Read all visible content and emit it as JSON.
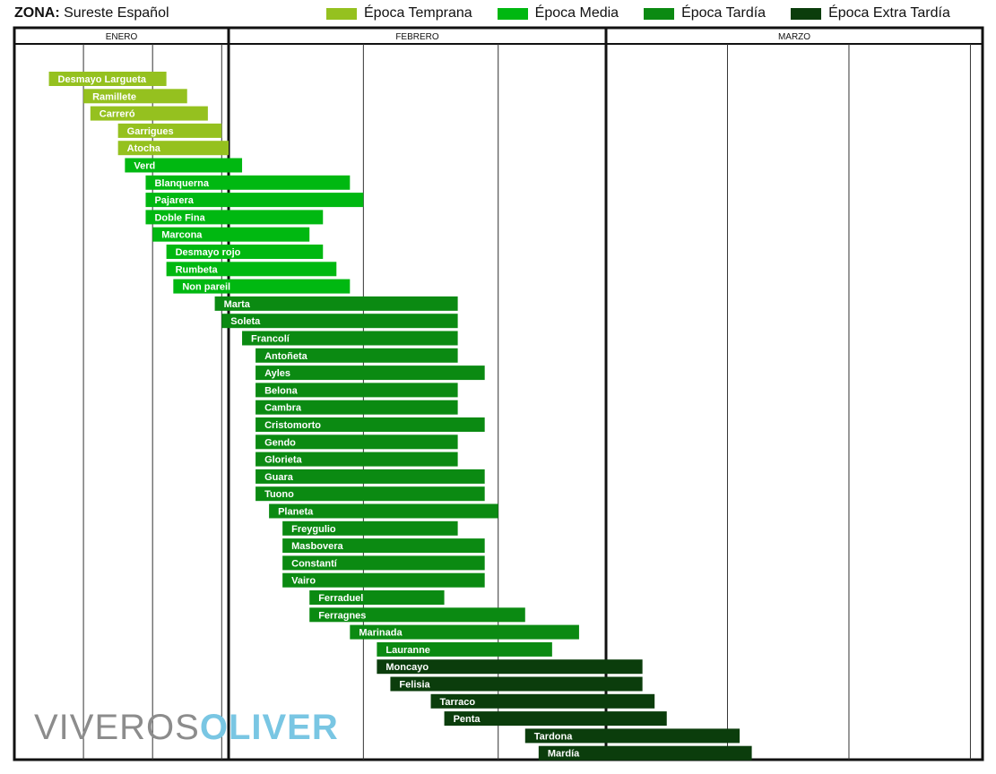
{
  "zona": {
    "label": "ZONA:",
    "value": "Sureste Español"
  },
  "brand": {
    "part1": "VIVEROS",
    "part2": "OLIVER"
  },
  "colors": {
    "Época Temprana": "#95c11f",
    "Época Media": "#00b811",
    "Época Tardía": "#0b8a12",
    "Época Extra Tardía": "#0b3d0c"
  },
  "chart_data": {
    "type": "bar",
    "orientation": "horizontal-timeline",
    "x_unit": "day of year (1 = 1 Jan)",
    "xlim": [
      1,
      90
    ],
    "months": [
      {
        "label": "ENERO",
        "start": 1,
        "end": 31
      },
      {
        "label": "FEBRERO",
        "start": 32,
        "end": 59
      },
      {
        "label": "MARZO",
        "start": 60,
        "end": 90
      }
    ],
    "legend": [
      "Época Temprana",
      "Época Media",
      "Época Tardía",
      "Época Extra Tardía"
    ],
    "legend_position": "top",
    "bars": [
      {
        "name": "Desmayo Largueta",
        "start": 6,
        "end": 23,
        "epoca": "Época Temprana"
      },
      {
        "name": "Ramillete",
        "start": 11,
        "end": 26,
        "epoca": "Época Temprana"
      },
      {
        "name": "Carreró",
        "start": 12,
        "end": 29,
        "epoca": "Época Temprana"
      },
      {
        "name": "Garrigues",
        "start": 16,
        "end": 31,
        "epoca": "Época Temprana"
      },
      {
        "name": "Atocha",
        "start": 16,
        "end": 32,
        "epoca": "Época Temprana"
      },
      {
        "name": "Verd",
        "start": 17,
        "end": 33,
        "epoca": "Época Media"
      },
      {
        "name": "Blanquerna",
        "start": 20,
        "end": 41,
        "epoca": "Época Media"
      },
      {
        "name": "Pajarera",
        "start": 20,
        "end": 42,
        "epoca": "Época Media"
      },
      {
        "name": "Doble Fina",
        "start": 20,
        "end": 39,
        "epoca": "Época Media"
      },
      {
        "name": "Marcona",
        "start": 21,
        "end": 38,
        "epoca": "Época Media"
      },
      {
        "name": "Desmayo rojo",
        "start": 23,
        "end": 39,
        "epoca": "Época Media"
      },
      {
        "name": "Rumbeta",
        "start": 23,
        "end": 40,
        "epoca": "Época Media"
      },
      {
        "name": "Non pareil",
        "start": 24,
        "end": 41,
        "epoca": "Época Media"
      },
      {
        "name": "Marta",
        "start": 30,
        "end": 49,
        "epoca": "Época Tardía"
      },
      {
        "name": "Soleta",
        "start": 31,
        "end": 49,
        "epoca": "Época Tardía"
      },
      {
        "name": "Francolí",
        "start": 33,
        "end": 49,
        "epoca": "Época Tardía"
      },
      {
        "name": "Antoñeta",
        "start": 34,
        "end": 49,
        "epoca": "Época Tardía"
      },
      {
        "name": "Ayles",
        "start": 34,
        "end": 51,
        "epoca": "Época Tardía"
      },
      {
        "name": "Belona",
        "start": 34,
        "end": 49,
        "epoca": "Época Tardía"
      },
      {
        "name": "Cambra",
        "start": 34,
        "end": 49,
        "epoca": "Época Tardía"
      },
      {
        "name": "Cristomorto",
        "start": 34,
        "end": 51,
        "epoca": "Época Tardía"
      },
      {
        "name": "Gendo",
        "start": 34,
        "end": 49,
        "epoca": "Época Tardía"
      },
      {
        "name": "Glorieta",
        "start": 34,
        "end": 49,
        "epoca": "Época Tardía"
      },
      {
        "name": "Guara",
        "start": 34,
        "end": 51,
        "epoca": "Época Tardía"
      },
      {
        "name": "Tuono",
        "start": 34,
        "end": 51,
        "epoca": "Época Tardía"
      },
      {
        "name": "Planeta",
        "start": 35,
        "end": 52,
        "epoca": "Época Tardía"
      },
      {
        "name": "Freygulio",
        "start": 36,
        "end": 49,
        "epoca": "Época Tardía"
      },
      {
        "name": "Masbovera",
        "start": 36,
        "end": 51,
        "epoca": "Época Tardía"
      },
      {
        "name": "Constantí",
        "start": 36,
        "end": 51,
        "epoca": "Época Tardía"
      },
      {
        "name": "Vairo",
        "start": 36,
        "end": 51,
        "epoca": "Época Tardía"
      },
      {
        "name": "Ferraduel",
        "start": 38,
        "end": 48,
        "epoca": "Época Tardía"
      },
      {
        "name": "Ferragnes",
        "start": 38,
        "end": 54,
        "epoca": "Época Tardía"
      },
      {
        "name": "Marinada",
        "start": 41,
        "end": 58,
        "epoca": "Época Tardía"
      },
      {
        "name": "Lauranne",
        "start": 43,
        "end": 56,
        "epoca": "Época Tardía"
      },
      {
        "name": "Moncayo",
        "start": 43,
        "end": 63,
        "epoca": "Época Extra Tardía"
      },
      {
        "name": "Felisia",
        "start": 44,
        "end": 63,
        "epoca": "Época Extra Tardía"
      },
      {
        "name": "Tarraco",
        "start": 47,
        "end": 64,
        "epoca": "Época Extra Tardía"
      },
      {
        "name": "Penta",
        "start": 48,
        "end": 65,
        "epoca": "Época Extra Tardía"
      },
      {
        "name": "Tardona",
        "start": 54,
        "end": 71,
        "epoca": "Época Extra Tardía"
      },
      {
        "name": "Mardía",
        "start": 55,
        "end": 72,
        "epoca": "Época Extra Tardía"
      }
    ]
  }
}
